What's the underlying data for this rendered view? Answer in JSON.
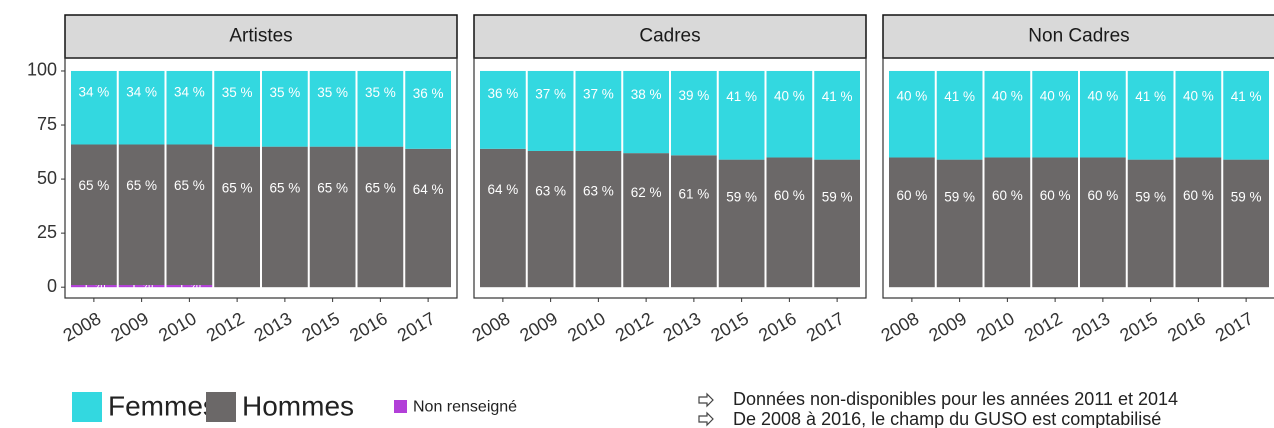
{
  "chart_data": [
    {
      "type": "bar",
      "stacked": true,
      "title": "Artistes",
      "categories": [
        "2008",
        "2009",
        "2010",
        "2012",
        "2013",
        "2015",
        "2016",
        "2017"
      ],
      "series": [
        {
          "name": "Femmes",
          "color": "#33d8e0",
          "values": [
            34,
            34,
            34,
            35,
            35,
            35,
            35,
            36
          ],
          "value_labels": [
            "34 %",
            "34 %",
            "34 %",
            "35 %",
            "35 %",
            "35 %",
            "35 %",
            "36 %"
          ]
        },
        {
          "name": "Hommes",
          "color": "#6b6868",
          "values": [
            65,
            65,
            65,
            65,
            65,
            65,
            65,
            64
          ],
          "value_labels": [
            "65 %",
            "65 %",
            "65 %",
            "65 %",
            "65 %",
            "65 %",
            "65 %",
            "64 %"
          ]
        },
        {
          "name": "Non renseigné",
          "color": "#b23fd8",
          "values": [
            1,
            1,
            1,
            null,
            null,
            null,
            null,
            null
          ],
          "value_labels": [
            "1 %",
            "1 %",
            "1 %",
            null,
            null,
            null,
            null,
            null
          ]
        }
      ],
      "ylim": [
        -5,
        106
      ],
      "yticks": [
        0,
        25,
        50,
        75,
        100
      ]
    },
    {
      "type": "bar",
      "stacked": true,
      "title": "Cadres",
      "categories": [
        "2008",
        "2009",
        "2010",
        "2012",
        "2013",
        "2015",
        "2016",
        "2017"
      ],
      "series": [
        {
          "name": "Femmes",
          "color": "#33d8e0",
          "values": [
            36,
            37,
            37,
            38,
            39,
            41,
            40,
            41
          ],
          "value_labels": [
            "36 %",
            "37 %",
            "37 %",
            "38 %",
            "39 %",
            "41 %",
            "40 %",
            "41 %"
          ]
        },
        {
          "name": "Hommes",
          "color": "#6b6868",
          "values": [
            64,
            63,
            63,
            62,
            61,
            59,
            60,
            59
          ],
          "value_labels": [
            "64 %",
            "63 %",
            "63 %",
            "62 %",
            "61 %",
            "59 %",
            "60 %",
            "59 %"
          ]
        }
      ],
      "ylim": [
        -5,
        106
      ]
    },
    {
      "type": "bar",
      "stacked": true,
      "title": "Non Cadres",
      "categories": [
        "2008",
        "2009",
        "2010",
        "2012",
        "2013",
        "2015",
        "2016",
        "2017"
      ],
      "series": [
        {
          "name": "Femmes",
          "color": "#33d8e0",
          "values": [
            40,
            41,
            40,
            40,
            40,
            41,
            40,
            41
          ],
          "value_labels": [
            "40 %",
            "41 %",
            "40 %",
            "40 %",
            "40 %",
            "41 %",
            "40 %",
            "41 %"
          ]
        },
        {
          "name": "Hommes",
          "color": "#6b6868",
          "values": [
            60,
            59,
            60,
            60,
            60,
            59,
            60,
            59
          ],
          "value_labels": [
            "60 %",
            "59 %",
            "60 %",
            "60 %",
            "60 %",
            "59 %",
            "60 %",
            "59 %"
          ]
        }
      ],
      "ylim": [
        -5,
        106
      ]
    }
  ],
  "notes": [
    "Données non-disponibles pour les années 2011 et 2014",
    "De 2008 à 2016, le champ du GUSO est comptabilisé"
  ]
}
